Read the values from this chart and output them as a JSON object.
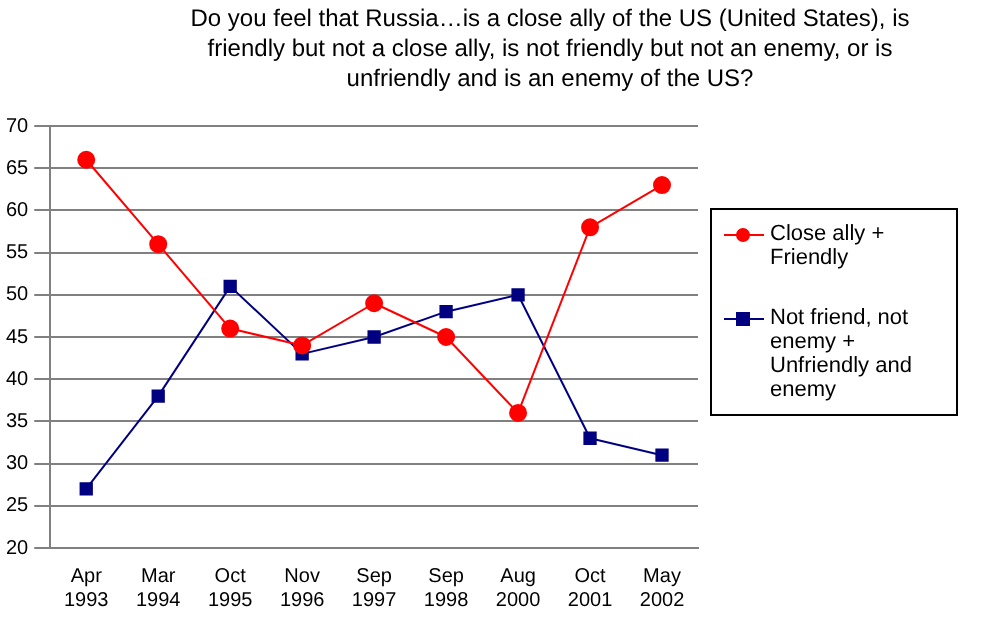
{
  "chart_data": {
    "type": "line",
    "title": "Do you feel that Russia…is a close ally of the US (United States), is friendly but not a close ally, is not friendly but not an enemy, or is unfriendly and is an enemy of the US?",
    "categories": [
      "Apr 1993",
      "Mar 1994",
      "Oct 1995",
      "Nov 1996",
      "Sep 1997",
      "Sep 1998",
      "Aug 2000",
      "Oct 2001",
      "May 2002"
    ],
    "series": [
      {
        "name": "Close ally + Friendly",
        "color": "#ff0000",
        "marker": "circle",
        "values": [
          66,
          56,
          46,
          44,
          49,
          45,
          36,
          58,
          63
        ]
      },
      {
        "name": "Not friend, not enemy + Unfriendly and enemy",
        "color": "#000080",
        "marker": "square",
        "values": [
          27,
          38,
          51,
          43,
          45,
          48,
          50,
          33,
          31
        ]
      }
    ],
    "ylim": [
      20,
      70
    ],
    "yticks": [
      20,
      25,
      30,
      35,
      40,
      45,
      50,
      55,
      60,
      65,
      70
    ],
    "grid": "y",
    "legend": "right"
  }
}
